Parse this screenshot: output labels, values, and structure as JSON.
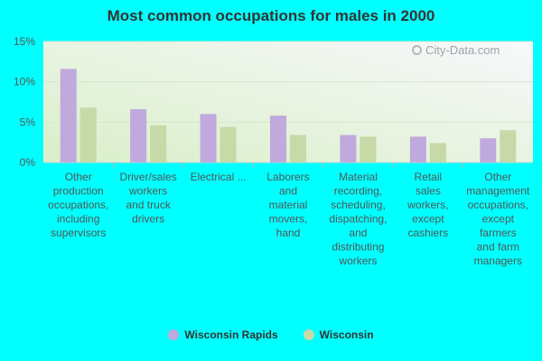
{
  "title": "Most common occupations for males in 2000",
  "watermark": "City-Data.com",
  "colors": {
    "background": "#00ffff",
    "series1": "#c0a9dc",
    "series2": "#c6d9a7",
    "grid": "#d6e6cf",
    "tick": "#555555"
  },
  "legend": [
    {
      "name": "Wisconsin Rapids"
    },
    {
      "name": "Wisconsin"
    }
  ],
  "chart_data": {
    "type": "bar",
    "title": "Most common occupations for males in 2000",
    "categories": [
      "Other production occupations, including supervisors",
      "Driver/sales workers and truck drivers",
      "Electrical ...",
      "Laborers and material movers, hand",
      "Material recording, scheduling, dispatching, and distributing workers",
      "Retail sales workers, except cashiers",
      "Other management occupations, except farmers and farm managers"
    ],
    "category_lines": [
      [
        "Other",
        "production",
        "occupations,",
        "including",
        "supervisors"
      ],
      [
        "Driver/sales",
        "workers",
        "and truck",
        "drivers"
      ],
      [
        "Electrical ..."
      ],
      [
        "Laborers",
        "and",
        "material",
        "movers,",
        "hand"
      ],
      [
        "Material",
        "recording,",
        "scheduling,",
        "dispatching,",
        "and",
        "distributing",
        "workers"
      ],
      [
        "Retail",
        "sales",
        "workers,",
        "except",
        "cashiers"
      ],
      [
        "Other",
        "management",
        "occupations,",
        "except",
        "farmers",
        "and farm",
        "managers"
      ]
    ],
    "series": [
      {
        "name": "Wisconsin Rapids",
        "values": [
          11.6,
          6.6,
          6.0,
          5.8,
          3.4,
          3.2,
          3.0
        ]
      },
      {
        "name": "Wisconsin",
        "values": [
          6.8,
          4.6,
          4.4,
          3.4,
          3.2,
          2.4,
          4.0
        ]
      }
    ],
    "ylim": [
      0,
      15
    ],
    "yticks": [
      "0%",
      "5%",
      "10%",
      "15%"
    ],
    "ytick_values": [
      0,
      5,
      10,
      15
    ],
    "grid": true,
    "legend_position": "bottom"
  }
}
